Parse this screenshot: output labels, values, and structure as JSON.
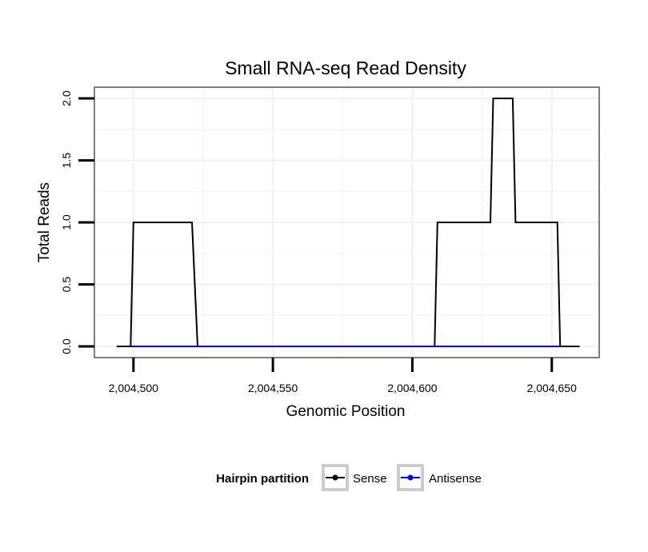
{
  "chart_data": {
    "type": "line",
    "title": "Small RNA-seq Read Density",
    "xlabel": "Genomic Position",
    "ylabel": "Total Reads",
    "xlim": [
      2004486,
      2004667
    ],
    "ylim": [
      -0.09,
      2.09
    ],
    "x_ticks": [
      2004500,
      2004550,
      2004600,
      2004650
    ],
    "x_tick_labels": [
      "2,004,500",
      "2,004,550",
      "2,004,600",
      "2,004,650"
    ],
    "y_ticks": [
      0.0,
      0.5,
      1.0,
      1.5,
      2.0
    ],
    "y_tick_labels": [
      "0.0",
      "0.5",
      "1.0",
      "1.5",
      "2.0"
    ],
    "grid": true,
    "legend": {
      "title": "Hairpin partition",
      "placement": "bottom",
      "entries": [
        "Sense",
        "Antisense"
      ]
    },
    "series": [
      {
        "name": "Sense",
        "color": "#000000",
        "x": [
          2004494,
          2004499,
          2004500,
          2004521,
          2004523,
          2004608,
          2004609,
          2004628,
          2004629,
          2004636,
          2004637,
          2004652,
          2004653,
          2004660
        ],
        "y": [
          0,
          0,
          1,
          1,
          0,
          0,
          1,
          1,
          2,
          2,
          1,
          1,
          0,
          0
        ]
      },
      {
        "name": "Antisense",
        "color": "#0000ff",
        "x": [
          2004499,
          2004523,
          2004608,
          2004653
        ],
        "y": [
          0,
          0,
          0,
          0
        ]
      }
    ]
  }
}
